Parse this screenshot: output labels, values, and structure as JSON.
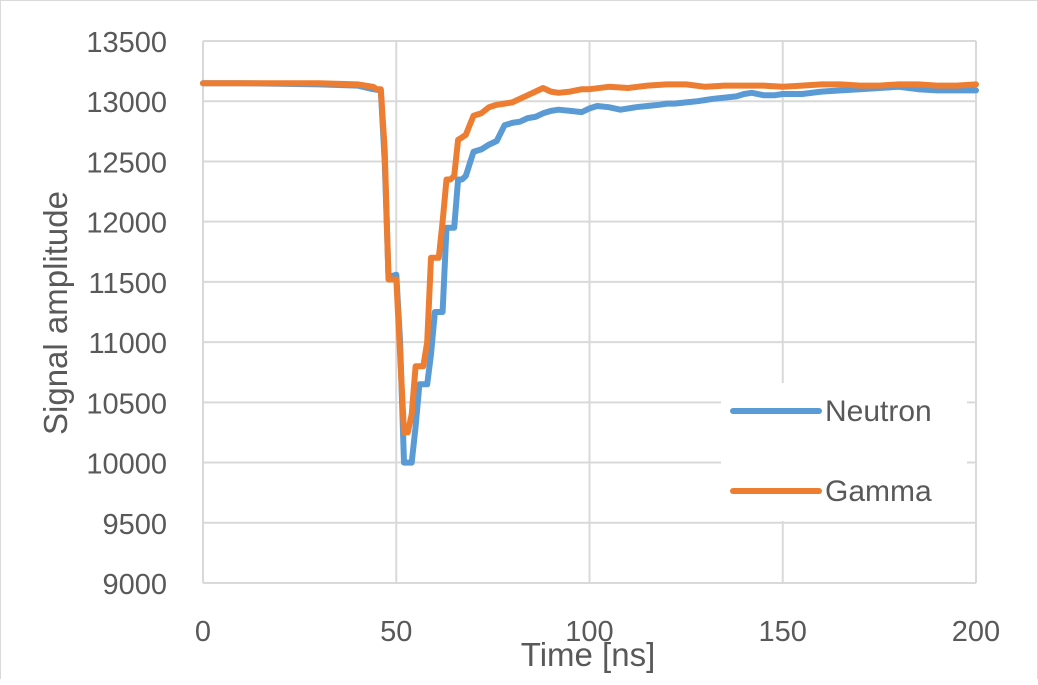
{
  "chart_data": {
    "type": "line",
    "title": "",
    "xlabel": "Time [ns]",
    "ylabel": "Signal amplitude",
    "xlim": [
      0,
      200
    ],
    "ylim": [
      9000,
      13500
    ],
    "xticks": [
      0,
      50,
      100,
      150,
      200
    ],
    "yticks": [
      9000,
      9500,
      10000,
      10500,
      11000,
      11500,
      12000,
      12500,
      13000,
      13500
    ],
    "x_tick_labels": [
      "0",
      "50",
      "100",
      "150",
      "200"
    ],
    "y_tick_labels": [
      "9000",
      "9500",
      "10000",
      "10500",
      "11000",
      "11500",
      "12000",
      "12500",
      "13000",
      "13500"
    ],
    "grid": true,
    "legend_position": "bottom-right",
    "series": [
      {
        "name": "Neutron",
        "color": "#5b9bd5",
        "x": [
          0,
          10,
          20,
          30,
          40,
          44,
          46,
          47,
          48,
          49,
          50,
          51,
          52,
          53,
          54,
          55,
          56,
          57,
          58,
          59,
          60,
          61,
          62,
          63,
          64,
          65,
          66,
          67,
          68,
          70,
          72,
          74,
          76,
          78,
          80,
          82,
          84,
          86,
          88,
          90,
          92,
          95,
          98,
          100,
          102,
          105,
          108,
          110,
          112,
          115,
          118,
          120,
          122,
          125,
          128,
          130,
          132,
          135,
          138,
          140,
          142,
          145,
          148,
          150,
          155,
          160,
          165,
          170,
          175,
          180,
          185,
          190,
          195,
          200
        ],
        "y": [
          13150,
          13150,
          13145,
          13140,
          13130,
          13100,
          13090,
          12500,
          11550,
          11550,
          11560,
          11000,
          10000,
          10000,
          10000,
          10300,
          10650,
          10650,
          10650,
          10900,
          11250,
          11250,
          11250,
          11950,
          11950,
          11950,
          12350,
          12350,
          12380,
          12580,
          12600,
          12640,
          12670,
          12800,
          12820,
          12830,
          12860,
          12870,
          12900,
          12920,
          12930,
          12920,
          12910,
          12940,
          12960,
          12950,
          12930,
          12940,
          12950,
          12960,
          12970,
          12980,
          12980,
          12990,
          13000,
          13010,
          13020,
          13030,
          13040,
          13060,
          13070,
          13050,
          13050,
          13060,
          13060,
          13080,
          13090,
          13100,
          13110,
          13120,
          13100,
          13090,
          13090,
          13090
        ]
      },
      {
        "name": "Gamma",
        "color": "#ed7d31",
        "x": [
          0,
          10,
          20,
          30,
          40,
          44,
          45,
          46,
          47,
          48,
          49,
          50,
          51,
          52,
          53,
          54,
          55,
          56,
          57,
          58,
          59,
          60,
          61,
          62,
          63,
          64,
          65,
          66,
          67,
          68,
          70,
          72,
          74,
          76,
          78,
          80,
          82,
          84,
          86,
          88,
          90,
          92,
          95,
          98,
          100,
          105,
          110,
          115,
          120,
          125,
          130,
          135,
          140,
          145,
          150,
          155,
          160,
          165,
          170,
          175,
          180,
          185,
          190,
          195,
          200
        ],
        "y": [
          13150,
          13150,
          13150,
          13150,
          13140,
          13120,
          13100,
          13100,
          12600,
          11520,
          11520,
          11520,
          10900,
          10250,
          10250,
          10400,
          10800,
          10800,
          10800,
          11000,
          11700,
          11700,
          11700,
          12000,
          12350,
          12350,
          12380,
          12680,
          12700,
          12720,
          12880,
          12900,
          12950,
          12970,
          12980,
          12990,
          13020,
          13050,
          13080,
          13110,
          13080,
          13070,
          13080,
          13100,
          13100,
          13120,
          13110,
          13130,
          13140,
          13140,
          13120,
          13130,
          13130,
          13130,
          13120,
          13130,
          13140,
          13140,
          13130,
          13130,
          13140,
          13140,
          13130,
          13130,
          13140
        ]
      }
    ]
  }
}
